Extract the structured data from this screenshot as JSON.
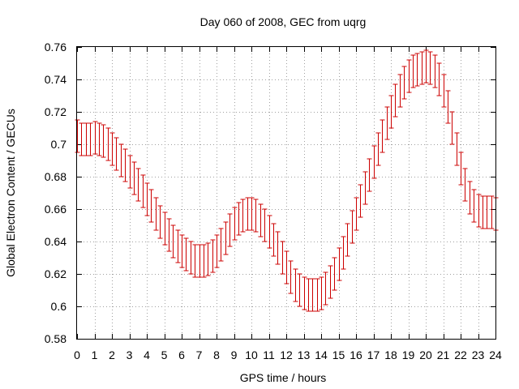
{
  "chart_data": {
    "type": "line",
    "title": "Day 060 of 2008, GEC from uqrg",
    "xlabel": "GPS time / hours",
    "ylabel": "Global Electron Content / GECUs",
    "xlim": [
      0,
      24
    ],
    "ylim": [
      0.58,
      0.76
    ],
    "xticks": [
      0,
      1,
      2,
      3,
      4,
      5,
      6,
      7,
      8,
      9,
      10,
      11,
      12,
      13,
      14,
      15,
      16,
      17,
      18,
      19,
      20,
      21,
      22,
      23,
      24
    ],
    "xtick_labels": [
      "0",
      "1",
      "2",
      "3",
      "4",
      "5",
      "6",
      "7",
      "8",
      "9",
      "10",
      "11",
      "12",
      "13",
      "14",
      "15",
      "16",
      "17",
      "18",
      "19",
      "20",
      "21",
      "22",
      "23",
      "24"
    ],
    "yticks": [
      0.58,
      0.6,
      0.62,
      0.64,
      0.66,
      0.68,
      0.7,
      0.72,
      0.74,
      0.76
    ],
    "ytick_labels": [
      "0.58",
      "0.6",
      "0.62",
      "0.64",
      "0.66",
      "0.68",
      "0.7",
      "0.72",
      "0.74",
      "0.76"
    ],
    "grid": true,
    "series_color": "#cc0000",
    "error": 0.01,
    "series": [
      {
        "x": [
          0,
          0.25,
          0.5,
          0.75,
          1,
          1.25,
          1.5,
          1.75,
          2,
          2.25,
          2.5,
          2.75,
          3,
          3.25,
          3.5,
          3.75,
          4,
          4.25,
          4.5,
          4.75,
          5,
          5.25,
          5.5,
          5.75,
          6,
          6.25,
          6.5,
          6.75,
          7,
          7.25,
          7.5,
          7.75,
          8,
          8.25,
          8.5,
          8.75,
          9,
          9.25,
          9.5,
          9.75,
          10,
          10.25,
          10.5,
          10.75,
          11,
          11.25,
          11.5,
          11.75,
          12,
          12.25,
          12.5,
          12.75,
          13,
          13.25,
          13.5,
          13.75,
          14,
          14.25,
          14.5,
          14.75,
          15,
          15.25,
          15.5,
          15.75,
          16,
          16.25,
          16.5,
          16.75,
          17,
          17.25,
          17.5,
          17.75,
          18,
          18.25,
          18.5,
          18.75,
          19,
          19.25,
          19.5,
          19.75,
          20,
          20.25,
          20.5,
          20.75,
          21,
          21.25,
          21.5,
          21.75,
          22,
          22.25,
          22.5,
          22.75,
          23,
          23.25,
          23.5,
          23.75,
          24
        ],
        "y": [
          0.705,
          0.703,
          0.703,
          0.703,
          0.704,
          0.703,
          0.702,
          0.7,
          0.697,
          0.694,
          0.69,
          0.687,
          0.683,
          0.679,
          0.675,
          0.671,
          0.666,
          0.662,
          0.657,
          0.652,
          0.648,
          0.644,
          0.64,
          0.637,
          0.634,
          0.632,
          0.63,
          0.628,
          0.628,
          0.628,
          0.629,
          0.631,
          0.634,
          0.638,
          0.642,
          0.647,
          0.651,
          0.654,
          0.656,
          0.657,
          0.657,
          0.656,
          0.653,
          0.65,
          0.646,
          0.641,
          0.636,
          0.63,
          0.624,
          0.618,
          0.613,
          0.61,
          0.608,
          0.607,
          0.607,
          0.607,
          0.608,
          0.611,
          0.615,
          0.62,
          0.626,
          0.633,
          0.641,
          0.649,
          0.657,
          0.665,
          0.673,
          0.681,
          0.689,
          0.697,
          0.705,
          0.713,
          0.72,
          0.727,
          0.733,
          0.738,
          0.742,
          0.745,
          0.746,
          0.747,
          0.748,
          0.747,
          0.745,
          0.74,
          0.733,
          0.723,
          0.71,
          0.697,
          0.685,
          0.675,
          0.667,
          0.662,
          0.659,
          0.658,
          0.658,
          0.658,
          0.657
        ]
      }
    ]
  }
}
